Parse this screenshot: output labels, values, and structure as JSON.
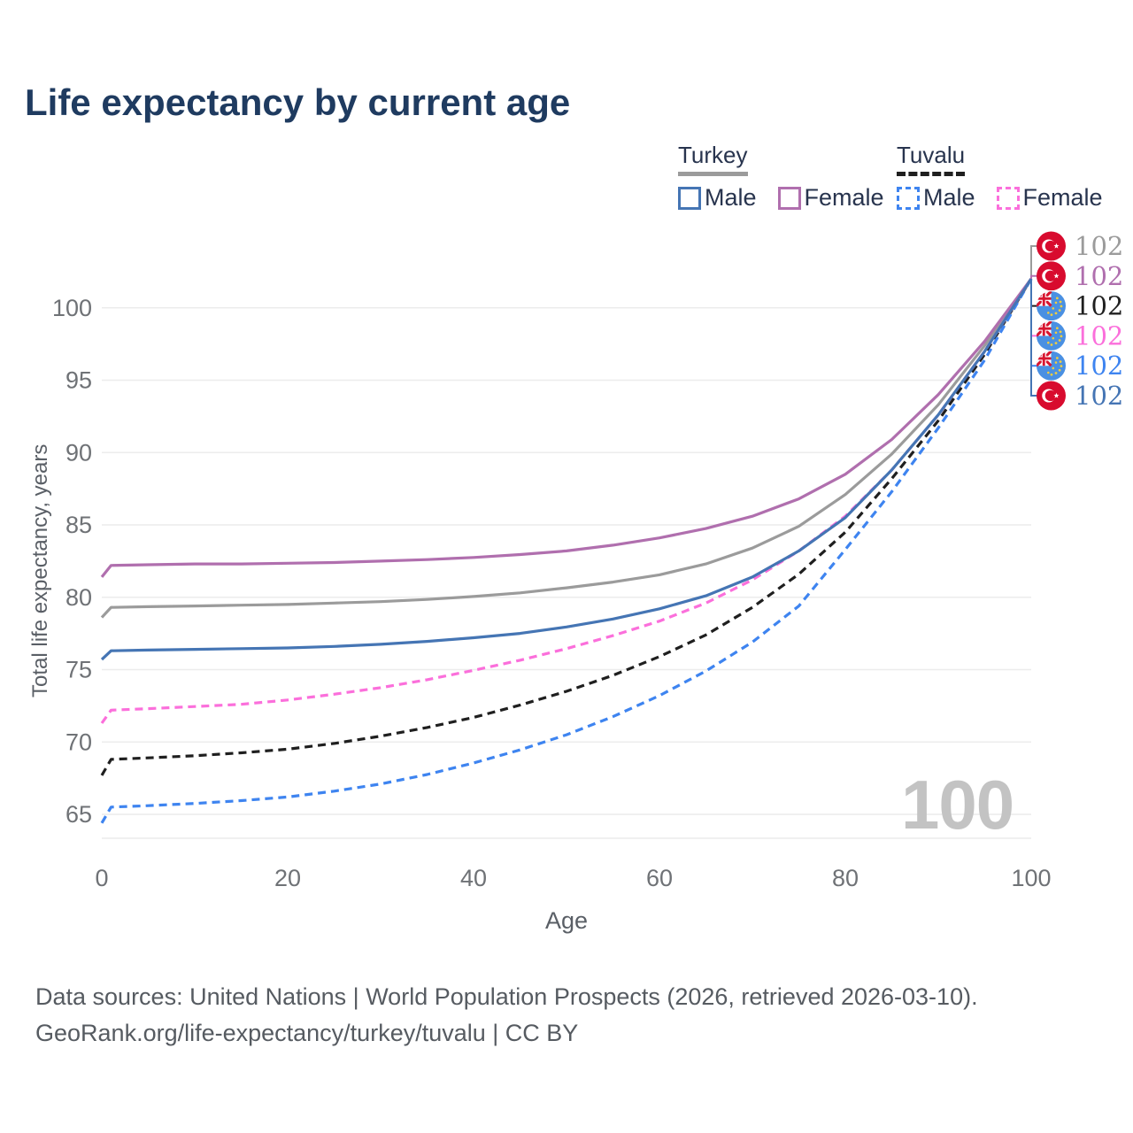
{
  "title": "Life expectancy by current age",
  "watermark": "100",
  "legend": {
    "groups": [
      {
        "name": "Turkey",
        "line_style": "solid",
        "underline_color": "#9b9b9b",
        "items": [
          {
            "label": "Male",
            "color": "#4575b4"
          },
          {
            "label": "Female",
            "color": "#b06fae"
          }
        ]
      },
      {
        "name": "Tuvalu",
        "line_style": "dashed",
        "underline_color": "#1f1f1f",
        "items": [
          {
            "label": "Male",
            "color": "#3e84f0"
          },
          {
            "label": "Female",
            "color": "#fb6fdb"
          }
        ]
      }
    ]
  },
  "chart_data": {
    "type": "line",
    "title": "Life expectancy by current age",
    "xlabel": "Age",
    "ylabel": "Total life expectancy, years",
    "xlim": [
      0,
      100
    ],
    "ylim": [
      63,
      103
    ],
    "xticks": [
      0,
      20,
      40,
      60,
      80,
      100
    ],
    "yticks": [
      65,
      70,
      75,
      80,
      85,
      90,
      95,
      100
    ],
    "grid": "horizontal-only",
    "legend_position": "top-right",
    "x": [
      0,
      1,
      5,
      10,
      15,
      20,
      25,
      30,
      35,
      40,
      45,
      50,
      55,
      60,
      65,
      70,
      75,
      80,
      85,
      90,
      95,
      100
    ],
    "series": [
      {
        "id": "turkey-all",
        "name": "Turkey",
        "country": "Turkey",
        "sex": "Both",
        "color": "#9b9b9b",
        "dashed": false,
        "flag": "turkey",
        "end_label": "102",
        "values": [
          78.6,
          79.3,
          79.35,
          79.4,
          79.45,
          79.5,
          79.6,
          79.7,
          79.85,
          80.05,
          80.3,
          80.65,
          81.05,
          81.55,
          82.3,
          83.4,
          84.9,
          87.1,
          89.9,
          93.3,
          97.4,
          102
        ]
      },
      {
        "id": "turkey-female",
        "name": "Turkey Female",
        "country": "Turkey",
        "sex": "Female",
        "color": "#b06fae",
        "dashed": false,
        "flag": "turkey",
        "end_label": "102",
        "values": [
          81.4,
          82.2,
          82.25,
          82.3,
          82.3,
          82.35,
          82.4,
          82.5,
          82.6,
          82.75,
          82.95,
          83.2,
          83.6,
          84.1,
          84.75,
          85.6,
          86.8,
          88.5,
          90.9,
          94.0,
          97.7,
          102
        ]
      },
      {
        "id": "tuvalu-all",
        "name": "Tuvalu",
        "country": "Tuvalu",
        "sex": "Both",
        "color": "#1f1f1f",
        "dashed": true,
        "flag": "tuvalu",
        "end_label": "102",
        "values": [
          67.7,
          68.8,
          68.9,
          69.05,
          69.25,
          69.5,
          69.9,
          70.4,
          71.0,
          71.7,
          72.55,
          73.5,
          74.6,
          75.9,
          77.4,
          79.3,
          81.6,
          84.5,
          88.2,
          92.2,
          96.8,
          102
        ]
      },
      {
        "id": "tuvalu-female",
        "name": "Tuvalu Female",
        "country": "Tuvalu",
        "sex": "Female",
        "color": "#fb6fdb",
        "dashed": true,
        "flag": "tuvalu",
        "end_label": "102",
        "values": [
          71.3,
          72.2,
          72.3,
          72.45,
          72.6,
          72.9,
          73.3,
          73.75,
          74.3,
          74.95,
          75.65,
          76.45,
          77.35,
          78.35,
          79.6,
          81.2,
          83.2,
          85.6,
          88.8,
          92.6,
          97.0,
          102
        ]
      },
      {
        "id": "tuvalu-male",
        "name": "Tuvalu Male",
        "country": "Tuvalu",
        "sex": "Male",
        "color": "#3e84f0",
        "dashed": true,
        "flag": "tuvalu",
        "end_label": "102",
        "values": [
          64.4,
          65.5,
          65.6,
          65.75,
          65.95,
          66.2,
          66.6,
          67.1,
          67.75,
          68.55,
          69.45,
          70.5,
          71.75,
          73.2,
          74.9,
          76.9,
          79.4,
          83.3,
          87.3,
          91.7,
          96.4,
          102
        ]
      },
      {
        "id": "turkey-male",
        "name": "Turkey Male",
        "country": "Turkey",
        "sex": "Male",
        "color": "#4575b4",
        "dashed": false,
        "flag": "turkey",
        "end_label": "102",
        "values": [
          75.7,
          76.3,
          76.35,
          76.4,
          76.45,
          76.5,
          76.6,
          76.75,
          76.95,
          77.2,
          77.5,
          77.95,
          78.5,
          79.2,
          80.1,
          81.4,
          83.2,
          85.5,
          88.8,
          92.6,
          97.0,
          102
        ]
      }
    ]
  },
  "colors": {
    "title_text": "#1f3b60",
    "legend_text": "#28344e",
    "tick_text": "#6f7276",
    "grid_line": "#ececec",
    "watermark": "#c3c3c3",
    "footer_text": "#565b61",
    "turkey_flag_red": "#d80b2e",
    "tuvalu_flag_blue": "#4a90e2"
  },
  "footer": {
    "line1": "Data sources: United Nations | World Population Prospects (2026, retrieved 2026-03-10).",
    "line2": "GeoRank.org/life-expectancy/turkey/tuvalu | CC BY"
  }
}
